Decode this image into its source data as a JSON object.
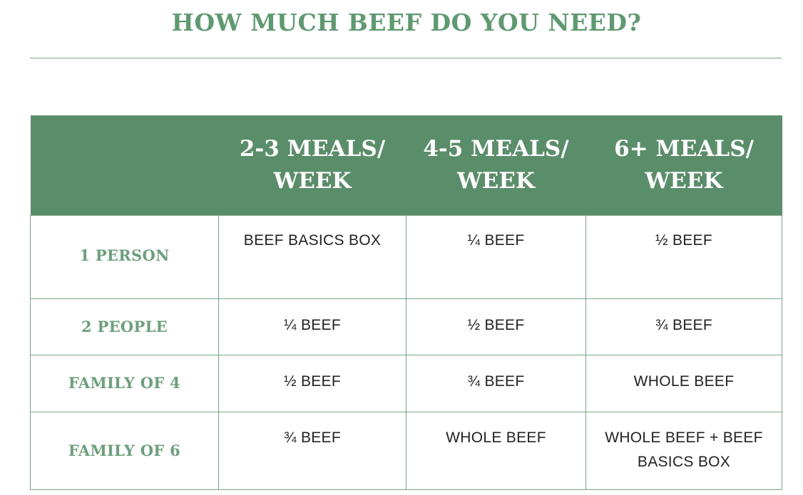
{
  "title": "HOW MUCH BEEF DO YOU NEED?",
  "colors": {
    "accent_green": "#5a8e6b",
    "title_green": "#5e9a70",
    "label_green": "#6aa07a",
    "rule_green": "#7aa886",
    "cell_text": "#222222"
  },
  "table": {
    "columns": [
      "",
      "2-3 MEALS/ WEEK",
      "4-5 MEALS/ WEEK",
      "6+ MEALS/ WEEK"
    ],
    "rows": [
      {
        "label": "1 PERSON",
        "cells": [
          "BEEF BASICS BOX",
          "¼ BEEF",
          "½ BEEF"
        ]
      },
      {
        "label": "2 PEOPLE",
        "cells": [
          "¼ BEEF",
          "½ BEEF",
          "¾ BEEF"
        ]
      },
      {
        "label": "FAMILY OF 4",
        "cells": [
          "½ BEEF",
          "¾ BEEF",
          "WHOLE BEEF"
        ]
      },
      {
        "label": "FAMILY OF 6",
        "cells": [
          "¾ BEEF",
          "WHOLE BEEF",
          "WHOLE BEEF + BEEF BASICS BOX"
        ]
      }
    ]
  }
}
